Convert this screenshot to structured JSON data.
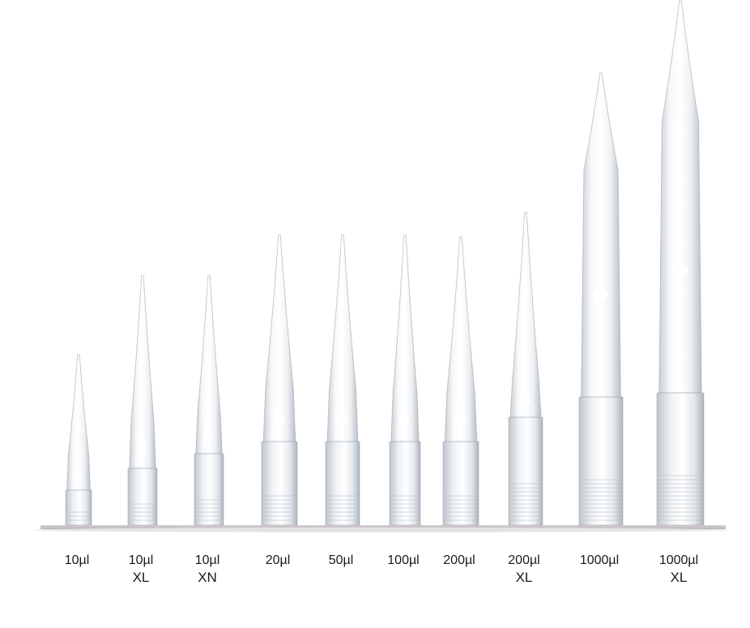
{
  "tips": [
    {
      "volume": "10µl",
      "variant": ""
    },
    {
      "volume": "10µl",
      "variant": "XL"
    },
    {
      "volume": "10µl",
      "variant": "XN"
    },
    {
      "volume": "20µl",
      "variant": ""
    },
    {
      "volume": "50µl",
      "variant": ""
    },
    {
      "volume": "100µl",
      "variant": ""
    },
    {
      "volume": "200µl",
      "variant": ""
    },
    {
      "volume": "200µl",
      "variant": "XL"
    },
    {
      "volume": "1000µl",
      "variant": ""
    },
    {
      "volume": "1000µl",
      "variant": "XL"
    }
  ],
  "colors": {
    "background": "#ffffff",
    "shelf": "#c8c4c6",
    "tip_edge": "#9aa0a6",
    "tip_fill": "#eef1f4",
    "label_text": "#1a1a1a"
  }
}
